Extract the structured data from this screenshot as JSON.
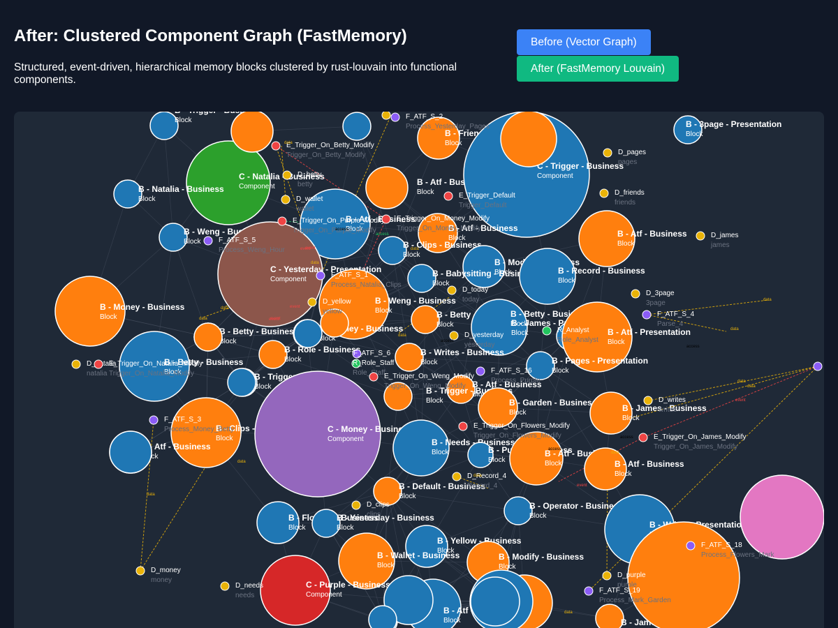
{
  "header": {
    "title": "After: Clustered Component Graph (FastMemory)",
    "subtitle": "Structured, event-driven, hierarchical memory blocks clustered by rust-louvain into functional components."
  },
  "buttons": {
    "before": "Before (Vector Graph)",
    "after": "After (FastMemory Louvain)"
  },
  "colors": {
    "before_button": "#3b82f6",
    "after_button": "#10b981",
    "blue": "#1f77b4",
    "orange": "#ff7f0e",
    "green": "#2ca02c",
    "brown": "#8c564b",
    "purple": "#9467bd",
    "red": "#d62728",
    "pink": "#e377c2",
    "data_dot": "#eab308",
    "event_dot": "#ef4444",
    "process_dot": "#8b5cf6",
    "role_dot": "#22c55e"
  },
  "graph": {
    "nodes": [
      {
        "label": "B - Trigger - Business",
        "sub": "Block",
        "color": "blue"
      },
      {
        "label": "C - Natalia - Business",
        "sub": "Component",
        "color": "green"
      },
      {
        "label": "B - Natalia - Business",
        "sub": "Block",
        "color": "blue"
      },
      {
        "label": "B - Weng - Business",
        "sub": "Block",
        "color": "blue"
      },
      {
        "label": "B - Atf - Business",
        "sub": "Block",
        "color": "blue"
      },
      {
        "label": "B - Atf - Business",
        "sub": "Block",
        "color": "orange"
      },
      {
        "label": "B - Friends - Business",
        "sub": "Block",
        "color": "orange"
      },
      {
        "label": "C - Trigger - Business",
        "sub": "Component",
        "color": "blue"
      },
      {
        "label": "B - 3page - Presentation",
        "sub": "Block",
        "color": "blue"
      },
      {
        "label": "B - Atf - Business",
        "sub": "Block",
        "color": "orange"
      },
      {
        "label": "B - Atf - Business",
        "sub": "Block",
        "color": "orange"
      },
      {
        "label": "B - Clips - Business",
        "sub": "Block",
        "color": "blue"
      },
      {
        "label": "C - Yesterday - Presentation",
        "sub": "Component",
        "color": "brown"
      },
      {
        "label": "B - Modify - Business",
        "sub": "Block",
        "color": "blue"
      },
      {
        "label": "B - Babysitting - Business",
        "sub": "Block",
        "color": "blue"
      },
      {
        "label": "B - Record - Business",
        "sub": "Block",
        "color": "blue"
      },
      {
        "label": "B - Money - Business",
        "sub": "Block",
        "color": "orange"
      },
      {
        "label": "B - Weng - Business",
        "sub": "Block",
        "color": "orange"
      },
      {
        "label": "B - Betty - Business",
        "sub": "Block",
        "color": "orange"
      },
      {
        "label": "B - Betty - Business",
        "sub": "Block",
        "color": "blue"
      },
      {
        "label": "B - James - Presentation",
        "sub": "Block",
        "color": "blue"
      },
      {
        "label": "B - Atf - Presentation",
        "sub": "Block",
        "color": "orange"
      },
      {
        "label": "B - Betty - Business",
        "sub": "Block",
        "color": "orange"
      },
      {
        "label": "B - Money - Business",
        "sub": "Block",
        "color": "blue"
      },
      {
        "label": "B - Betty - Business",
        "sub": "Block",
        "color": "blue"
      },
      {
        "label": "B - Role - Business",
        "sub": "Block",
        "color": "orange"
      },
      {
        "label": "B - Writes - Business",
        "sub": "Block",
        "color": "orange"
      },
      {
        "label": "B - Pages - Presentation",
        "sub": "Block",
        "color": "blue"
      },
      {
        "label": "B - Trigger - Business",
        "sub": "Block",
        "color": "blue"
      },
      {
        "label": "B - Atf - Business",
        "sub": "Block",
        "color": "orange"
      },
      {
        "label": "B - Trigger - Business",
        "sub": "Block",
        "color": "orange"
      },
      {
        "label": "B - Garden - Business",
        "sub": "Block",
        "color": "orange"
      },
      {
        "label": "B - James - Business",
        "sub": "Block",
        "color": "orange"
      },
      {
        "label": "B - Clips - Business",
        "sub": "Block",
        "color": "orange"
      },
      {
        "label": "C - Money - Business",
        "sub": "Component",
        "color": "purple"
      },
      {
        "label": "B - Needs - Business",
        "sub": "Block",
        "color": "blue"
      },
      {
        "label": "B - Atf - Business",
        "sub": "Block",
        "color": "blue"
      },
      {
        "label": "B - Purple - Business",
        "sub": "Block",
        "color": "blue"
      },
      {
        "label": "B - Atf - Business",
        "sub": "Block",
        "color": "orange"
      },
      {
        "label": "B - Atf - Business",
        "sub": "Block",
        "color": "orange"
      },
      {
        "label": "B - Default - Business",
        "sub": "Block",
        "color": "orange"
      },
      {
        "label": "B - Operator - Business",
        "sub": "Block",
        "color": "blue"
      },
      {
        "label": "B - Flowers - Business",
        "sub": "Block",
        "color": "blue"
      },
      {
        "label": "B - Yesterday - Business",
        "sub": "Block",
        "color": "blue"
      },
      {
        "label": "B - Writes - Presentation",
        "sub": "Block",
        "color": "blue"
      },
      {
        "label": "B - Yellow - Business",
        "sub": "Block",
        "color": "blue"
      },
      {
        "label": "B - Wallet - Business",
        "sub": "Block",
        "color": "orange"
      },
      {
        "label": "B - Modify - Business",
        "sub": "Block",
        "color": "orange"
      },
      {
        "label": "C - Purple - Business",
        "sub": "Component",
        "color": "red"
      },
      {
        "label": "B - Atf - Business",
        "sub": "Block",
        "color": "blue"
      },
      {
        "label": "B - James - Business",
        "sub": "Block",
        "color": "orange"
      },
      {
        "label": "",
        "sub": "",
        "color": "pink"
      },
      {
        "label": "",
        "sub": "",
        "color": "orange"
      },
      {
        "label": "",
        "sub": "",
        "color": "orange"
      },
      {
        "label": "",
        "sub": "",
        "color": "blue"
      },
      {
        "label": "",
        "sub": "",
        "color": "orange"
      },
      {
        "label": "",
        "sub": "",
        "color": "orange"
      },
      {
        "label": "",
        "sub": "",
        "color": "orange"
      },
      {
        "label": "",
        "sub": "",
        "color": "blue"
      },
      {
        "label": "",
        "sub": "",
        "color": "blue"
      },
      {
        "label": "",
        "sub": "",
        "color": "blue"
      },
      {
        "label": "",
        "sub": "",
        "color": "orange"
      },
      {
        "label": "",
        "sub": "",
        "color": "orange"
      },
      {
        "label": "",
        "sub": "",
        "color": "blue"
      },
      {
        "label": "",
        "sub": "",
        "color": "orange"
      },
      {
        "label": "",
        "sub": "",
        "color": "blue"
      },
      {
        "label": "",
        "sub": "",
        "color": "orange"
      },
      {
        "label": "",
        "sub": "",
        "color": "blue"
      },
      {
        "label": "",
        "sub": "",
        "color": "blue"
      },
      {
        "label": "",
        "sub": "",
        "color": "blue"
      }
    ],
    "entities": [
      {
        "label": "E_Trigger_On_Betty_Modify",
        "sub": "Trigger_On_Betty_Modify",
        "kind": "event"
      },
      {
        "label": "D_betty",
        "sub": "betty",
        "kind": "data"
      },
      {
        "label": "D_wallet",
        "sub": "wallet",
        "kind": "data"
      },
      {
        "label": "E_Trigger_On_Purple_Modify",
        "sub": "Trigger_On_Purple_Modify",
        "kind": "event"
      },
      {
        "label": "F_ATF_S_5",
        "sub": "Process_Weng_Hour",
        "kind": "process"
      },
      {
        "label": "F_ATF_S_2",
        "sub": "Process_Yesterday_Pages",
        "kind": "process"
      },
      {
        "label": "",
        "sub": "",
        "kind": "data"
      },
      {
        "label": "E_Trigger_On_Money_Modify",
        "sub": "Trigger_On_Money_Modify",
        "kind": "event"
      },
      {
        "label": "E_Trigger_Default",
        "sub": "Trigger_Default",
        "kind": "event"
      },
      {
        "label": "D_pages",
        "sub": "pages",
        "kind": "data"
      },
      {
        "label": "D_friends",
        "sub": "friends",
        "kind": "data"
      },
      {
        "label": "D_james",
        "sub": "james",
        "kind": "data"
      },
      {
        "label": "F_ATF_S_1",
        "sub": "Process_Natalia_Clips",
        "kind": "process"
      },
      {
        "label": "D_today",
        "sub": "today",
        "kind": "data"
      },
      {
        "label": "D_3page",
        "sub": "3page",
        "kind": "data"
      },
      {
        "label": "F_ATF_S_4",
        "sub": "Parse_4",
        "kind": "process"
      },
      {
        "label": "D_yellow",
        "sub": "yellow",
        "kind": "data"
      },
      {
        "label": "D_yesterday",
        "sub": "yesterday",
        "kind": "data"
      },
      {
        "label": "R_Analyst",
        "sub": "Role_Analyst",
        "kind": "role"
      },
      {
        "label": "D_natalia",
        "sub": "natalia",
        "kind": "data"
      },
      {
        "label": "E_Trigger_On_Natalia_Modify",
        "sub": "Trigger_On_Natalia_Modify",
        "kind": "event"
      },
      {
        "label": "F_ATF_S_6",
        "sub": "",
        "kind": "process"
      },
      {
        "label": "R_Role_Staff",
        "sub": "Role_Staff",
        "kind": "role"
      },
      {
        "label": "E_Trigger_On_Weng_Modify",
        "sub": "Trigger_On_Weng_Modify",
        "kind": "event"
      },
      {
        "label": "F_ATF_S_16",
        "sub": "Process_Purple",
        "kind": "process"
      },
      {
        "label": "",
        "sub": "",
        "kind": "process"
      },
      {
        "label": "F_ATF_S_3",
        "sub": "Process_Money_Betty",
        "kind": "process"
      },
      {
        "label": "D_writes",
        "sub": "writes",
        "kind": "data"
      },
      {
        "label": "E_Trigger_On_Flowers_Modify",
        "sub": "Trigger_On_Flowers_Modify",
        "kind": "event"
      },
      {
        "label": "E_Trigger_On_James_Modify",
        "sub": "Trigger_On_James_Modify",
        "kind": "event"
      },
      {
        "label": "D_Record_4",
        "sub": "Record_4",
        "kind": "data"
      },
      {
        "label": "D_clips",
        "sub": "clips",
        "kind": "data"
      },
      {
        "label": "F_ATF_S_18",
        "sub": "Process_Flowers_Mark",
        "kind": "process"
      },
      {
        "label": "D_money",
        "sub": "money",
        "kind": "data"
      },
      {
        "label": "D_needs",
        "sub": "needs",
        "kind": "data"
      },
      {
        "label": "D_purple",
        "sub": "purple",
        "kind": "data"
      },
      {
        "label": "F_ATF_S_19",
        "sub": "Process_Mark_Garden",
        "kind": "process"
      }
    ],
    "link_labels": [
      "access",
      "event",
      "data",
      "data",
      "data",
      "event",
      "data",
      "event",
      "data",
      "data",
      "data",
      "access",
      "access",
      "data",
      "data",
      "event",
      "access",
      "event",
      "data",
      "data",
      "data",
      "access",
      "event",
      "data",
      "data",
      "event",
      "data",
      "access"
    ]
  }
}
